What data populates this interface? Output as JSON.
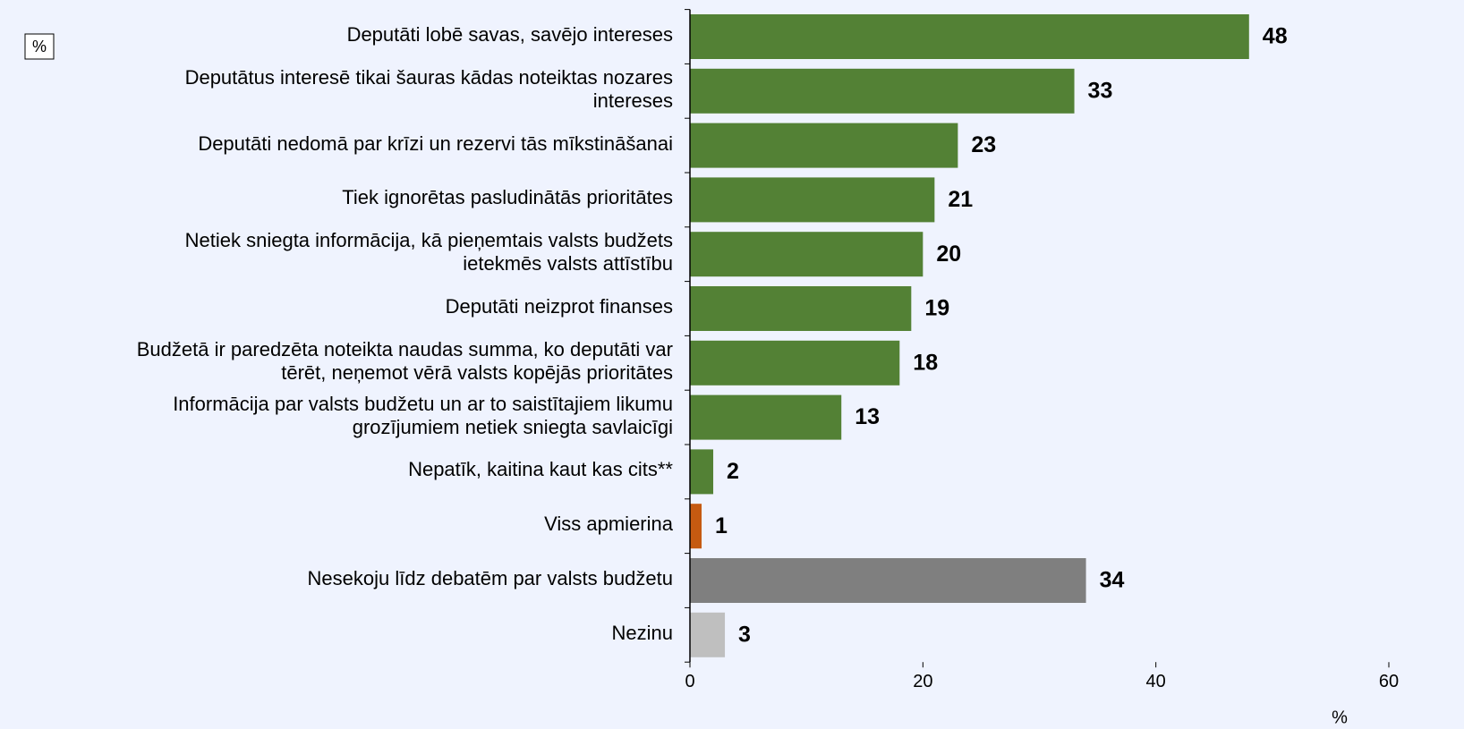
{
  "chart_data": {
    "type": "barh",
    "unit_box": "%",
    "xlabel": "%",
    "categories": [
      "Deputāti lobē savas, savējo intereses",
      "Deputātus interesē tikai šauras kādas noteiktas nozares\nintereses",
      "Deputāti nedomā par krīzi un rezervi tās mīkstināšanai",
      "Tiek ignorētas pasludinātās prioritātes",
      "Netiek sniegta informācija, kā pieņemtais valsts budžets\nietekmēs valsts attīstību",
      "Deputāti neizprot finanses",
      "Budžetā ir paredzēta noteikta naudas summa, ko deputāti var\ntērēt, neņemot vērā valsts kopējās prioritātes",
      "Informācija par valsts budžetu un ar to saistītajiem likumu\ngrozījumiem netiek sniegta savlaicīgi",
      "Nepatīk, kaitina kaut kas cits**",
      "Viss apmierina",
      "Nesekoju līdz debatēm par valsts budžetu",
      "Nezinu"
    ],
    "values": [
      48,
      33,
      23,
      21,
      20,
      19,
      18,
      13,
      2,
      1,
      34,
      3
    ],
    "colors": [
      "#538135",
      "#538135",
      "#538135",
      "#538135",
      "#538135",
      "#538135",
      "#538135",
      "#538135",
      "#538135",
      "#c55a11",
      "#7f7f7f",
      "#bfbfbf"
    ],
    "xlim": [
      0,
      60
    ],
    "xticks": [
      0,
      20,
      40,
      60
    ]
  }
}
